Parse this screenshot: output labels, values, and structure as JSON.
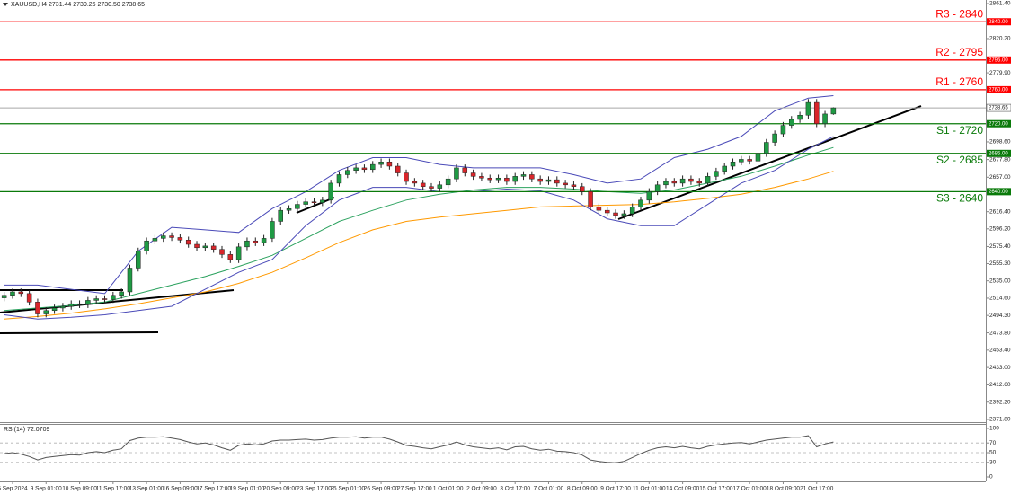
{
  "chart_data": [
    {
      "type": "candlestick",
      "title": "XAUUSD,H4  2731.44 2739.26 2730.50 2738.65",
      "xlim": [
        -0.5,
        117.2
      ],
      "ylim": [
        2371.8,
        2861.4
      ],
      "yticks": [
        {
          "value": 2861.4,
          "label": "2861.40"
        },
        {
          "value": 2820.2,
          "label": "2820.20"
        },
        {
          "value": 2779.9,
          "label": "2779.90"
        },
        {
          "value": 2698.6,
          "label": "2698.60"
        },
        {
          "value": 2677.8,
          "label": "2677.80"
        },
        {
          "value": 2657,
          "label": "2657.00"
        },
        {
          "value": 2616.4,
          "label": "2616.40"
        },
        {
          "value": 2596.2,
          "label": "2596.20"
        },
        {
          "value": 2575.4,
          "label": "2575.40"
        },
        {
          "value": 2555.3,
          "label": "2555.30"
        },
        {
          "value": 2535,
          "label": "2535.00"
        },
        {
          "value": 2514.6,
          "label": "2514.60"
        },
        {
          "value": 2494.3,
          "label": "2494.30"
        },
        {
          "value": 2473.8,
          "label": "2473.80"
        },
        {
          "value": 2453.4,
          "label": "2453.40"
        },
        {
          "value": 2433,
          "label": "2433.00"
        },
        {
          "value": 2412.6,
          "label": "2412.60"
        },
        {
          "value": 2392.2,
          "label": "2392.20"
        },
        {
          "value": 2371.8,
          "label": "2371.80"
        }
      ],
      "up_color": "#1f9a44",
      "down_color": "#d9262b",
      "open": [
        2515,
        2518,
        2522,
        2520,
        2510,
        2496,
        2500,
        2503,
        2505,
        2508,
        2507,
        2512,
        2514,
        2513,
        2518,
        2522,
        2550,
        2570,
        2582,
        2585,
        2588,
        2586,
        2583,
        2578,
        2574,
        2576,
        2572,
        2566,
        2560,
        2575,
        2582,
        2580,
        2585,
        2605,
        2618,
        2620,
        2625,
        2628,
        2627,
        2630,
        2650,
        2660,
        2665,
        2668,
        2666,
        2672,
        2675,
        2670,
        2662,
        2652,
        2650,
        2646,
        2644,
        2648,
        2655,
        2668,
        2662,
        2658,
        2656,
        2654,
        2656,
        2652,
        2658,
        2660,
        2655,
        2652,
        2654,
        2650,
        2648,
        2646,
        2640,
        2622,
        2618,
        2615,
        2612,
        2614,
        2622,
        2630,
        2640,
        2648,
        2652,
        2650,
        2655,
        2652,
        2650,
        2658,
        2664,
        2670,
        2675,
        2678,
        2676,
        2685,
        2698,
        2708,
        2718,
        2725,
        2730,
        2745,
        2720,
        2731.44
      ],
      "high": [
        2522,
        2526,
        2526,
        2524,
        2514,
        2504,
        2507,
        2509,
        2512,
        2512,
        2516,
        2518,
        2518,
        2522,
        2526,
        2554,
        2574,
        2586,
        2589,
        2592,
        2592,
        2590,
        2587,
        2582,
        2580,
        2580,
        2576,
        2570,
        2579,
        2586,
        2586,
        2589,
        2609,
        2622,
        2624,
        2629,
        2632,
        2632,
        2634,
        2654,
        2664,
        2669,
        2672,
        2672,
        2676,
        2679,
        2679,
        2674,
        2666,
        2656,
        2654,
        2650,
        2652,
        2659,
        2672,
        2672,
        2666,
        2662,
        2660,
        2660,
        2660,
        2662,
        2664,
        2664,
        2659,
        2658,
        2658,
        2654,
        2652,
        2650,
        2644,
        2626,
        2622,
        2619,
        2618,
        2626,
        2634,
        2644,
        2652,
        2656,
        2656,
        2659,
        2659,
        2656,
        2662,
        2668,
        2674,
        2679,
        2682,
        2682,
        2689,
        2702,
        2712,
        2722,
        2729,
        2734,
        2749,
        2749,
        2735,
        2739.26
      ],
      "low": [
        2511,
        2514,
        2516,
        2506,
        2492,
        2492,
        2496,
        2499,
        2501,
        2503,
        2503,
        2508,
        2509,
        2509,
        2514,
        2518,
        2546,
        2566,
        2578,
        2581,
        2582,
        2579,
        2574,
        2570,
        2570,
        2568,
        2562,
        2556,
        2556,
        2571,
        2576,
        2576,
        2581,
        2601,
        2614,
        2616,
        2621,
        2623,
        2623,
        2626,
        2646,
        2656,
        2661,
        2662,
        2662,
        2668,
        2666,
        2658,
        2648,
        2646,
        2642,
        2640,
        2640,
        2644,
        2651,
        2658,
        2654,
        2652,
        2650,
        2650,
        2648,
        2648,
        2654,
        2651,
        2648,
        2648,
        2646,
        2644,
        2642,
        2636,
        2618,
        2614,
        2611,
        2608,
        2608,
        2610,
        2618,
        2626,
        2636,
        2644,
        2646,
        2646,
        2648,
        2646,
        2646,
        2654,
        2660,
        2666,
        2671,
        2672,
        2672,
        2681,
        2694,
        2704,
        2714,
        2721,
        2726,
        2716,
        2716,
        2730.5
      ],
      "close": [
        2518,
        2522,
        2520,
        2510,
        2496,
        2500,
        2503,
        2505,
        2508,
        2507,
        2512,
        2514,
        2513,
        2518,
        2522,
        2550,
        2570,
        2582,
        2585,
        2588,
        2586,
        2583,
        2578,
        2574,
        2576,
        2572,
        2566,
        2560,
        2575,
        2582,
        2580,
        2585,
        2605,
        2618,
        2620,
        2625,
        2628,
        2627,
        2630,
        2650,
        2660,
        2665,
        2668,
        2666,
        2672,
        2675,
        2670,
        2662,
        2652,
        2650,
        2646,
        2644,
        2648,
        2655,
        2668,
        2662,
        2658,
        2656,
        2654,
        2656,
        2652,
        2658,
        2660,
        2655,
        2652,
        2654,
        2650,
        2648,
        2646,
        2640,
        2622,
        2618,
        2615,
        2612,
        2614,
        2622,
        2630,
        2640,
        2648,
        2652,
        2650,
        2655,
        2652,
        2650,
        2658,
        2664,
        2670,
        2675,
        2678,
        2676,
        2685,
        2698,
        2708,
        2718,
        2725,
        2730,
        2745,
        2720,
        2731.44,
        2738.65
      ],
      "overlays": [
        {
          "color": "#ff9900",
          "x": [
            0,
            4,
            8,
            12,
            16,
            20,
            24,
            28,
            32,
            36,
            40,
            44,
            48,
            52,
            56,
            60,
            64,
            68,
            72,
            76,
            80,
            84,
            88,
            92,
            96,
            99
          ],
          "values": [
            2490,
            2493,
            2497,
            2502,
            2508,
            2515,
            2522,
            2532,
            2545,
            2562,
            2580,
            2595,
            2605,
            2610,
            2614,
            2618,
            2622,
            2623,
            2624,
            2625,
            2628,
            2632,
            2637,
            2645,
            2655,
            2664
          ]
        },
        {
          "color": "#2ca25f",
          "x": [
            0,
            4,
            8,
            12,
            16,
            20,
            24,
            28,
            32,
            36,
            40,
            44,
            48,
            52,
            56,
            60,
            64,
            68,
            72,
            76,
            80,
            84,
            88,
            92,
            96,
            99
          ],
          "values": [
            2500,
            2503,
            2506,
            2510,
            2520,
            2530,
            2540,
            2552,
            2565,
            2585,
            2605,
            2618,
            2630,
            2637,
            2642,
            2645,
            2645,
            2643,
            2640,
            2638,
            2642,
            2650,
            2658,
            2670,
            2683,
            2692
          ]
        },
        {
          "color": "#4a4ab8",
          "x": [
            0,
            4,
            8,
            12,
            16,
            20,
            24,
            28,
            32,
            36,
            40,
            44,
            48,
            52,
            56,
            60,
            64,
            68,
            72,
            76,
            80,
            84,
            88,
            92,
            96,
            99
          ],
          "values": [
            2530,
            2530,
            2525,
            2520,
            2570,
            2598,
            2595,
            2592,
            2620,
            2640,
            2665,
            2680,
            2680,
            2672,
            2668,
            2668,
            2668,
            2660,
            2650,
            2655,
            2680,
            2690,
            2705,
            2735,
            2750,
            2753
          ]
        },
        {
          "color": "#4a4ab8",
          "x": [
            0,
            4,
            8,
            12,
            16,
            20,
            24,
            28,
            32,
            36,
            40,
            44,
            48,
            52,
            56,
            60,
            64,
            68,
            72,
            76,
            80,
            84,
            88,
            92,
            96,
            99
          ],
          "values": [
            2495,
            2490,
            2492,
            2495,
            2500,
            2505,
            2525,
            2545,
            2560,
            2600,
            2630,
            2645,
            2645,
            2640,
            2640,
            2643,
            2641,
            2630,
            2608,
            2600,
            2600,
            2625,
            2650,
            2665,
            2690,
            2705
          ]
        }
      ],
      "levels": [
        {
          "label": "R3 - 2840",
          "value": 2840,
          "tag": "2840.00",
          "color": "#ff0000"
        },
        {
          "label": "R2 - 2795",
          "value": 2795,
          "tag": "2795.00",
          "color": "#ff0000"
        },
        {
          "label": "R1 - 2760",
          "value": 2760,
          "tag": "2760.00",
          "color": "#ff0000"
        },
        {
          "label": "S1 - 2720",
          "value": 2720,
          "tag": "2720.00",
          "color": "#0a7a0a"
        },
        {
          "label": "S2 - 2685",
          "value": 2685,
          "tag": "2685.00",
          "color": "#0a7a0a"
        },
        {
          "label": "S3 - 2640",
          "value": 2640,
          "tag": "2640.00",
          "color": "#0a7a0a"
        }
      ],
      "last": {
        "value": 2738.65,
        "label": "2738.65"
      }
    },
    {
      "type": "line",
      "title": "RSI(14) 72.0709",
      "color": "#555555",
      "xlim": [
        -0.5,
        117.2
      ],
      "ylim": [
        0,
        100
      ],
      "yticks": [
        100,
        70,
        50,
        30,
        0
      ],
      "grid": true,
      "values": [
        48,
        50,
        47,
        42,
        35,
        40,
        42,
        44,
        46,
        45,
        50,
        52,
        50,
        55,
        58,
        75,
        80,
        82,
        82,
        83,
        80,
        77,
        72,
        68,
        70,
        66,
        60,
        55,
        65,
        68,
        66,
        68,
        74,
        76,
        76,
        77,
        78,
        76,
        77,
        80,
        82,
        82,
        83,
        80,
        82,
        82,
        78,
        72,
        65,
        63,
        60,
        58,
        62,
        66,
        72,
        66,
        62,
        60,
        58,
        60,
        56,
        62,
        63,
        58,
        55,
        57,
        53,
        52,
        50,
        45,
        35,
        32,
        30,
        29,
        32,
        40,
        48,
        55,
        60,
        62,
        60,
        63,
        60,
        58,
        63,
        66,
        68,
        70,
        71,
        68,
        72,
        76,
        78,
        80,
        82,
        82,
        85,
        62,
        68,
        72.0709
      ],
      "xticks": [
        {
          "value": 1,
          "label": "5 Sep 2024"
        },
        {
          "value": 5,
          "label": "9 Sep 01:00"
        },
        {
          "value": 9,
          "label": "10 Sep 09:00"
        },
        {
          "value": 13,
          "label": "11 Sep 17:00"
        },
        {
          "value": 17,
          "label": "13 Sep 01:00"
        },
        {
          "value": 21,
          "label": "16 Sep 09:00"
        },
        {
          "value": 25,
          "label": "17 Sep 17:00"
        },
        {
          "value": 29,
          "label": "19 Sep 01:00"
        },
        {
          "value": 33,
          "label": "20 Sep 09:00"
        },
        {
          "value": 37,
          "label": "23 Sep 17:00"
        },
        {
          "value": 41,
          "label": "25 Sep 01:00"
        },
        {
          "value": 45,
          "label": "26 Sep 09:00"
        },
        {
          "value": 49,
          "label": "27 Sep 17:00"
        },
        {
          "value": 53,
          "label": "1 Oct 01:00"
        },
        {
          "value": 57,
          "label": "2 Oct 09:00"
        },
        {
          "value": 61,
          "label": "3 Oct 17:00"
        },
        {
          "value": 65,
          "label": "7 Oct 01:00"
        },
        {
          "value": 69,
          "label": "8 Oct 09:00"
        },
        {
          "value": 73,
          "label": "9 Oct 17:00"
        },
        {
          "value": 77,
          "label": "11 Oct 01:00"
        },
        {
          "value": 81,
          "label": "14 Oct 09:00"
        },
        {
          "value": 85,
          "label": "15 Oct 17:00"
        },
        {
          "value": 89,
          "label": "17 Oct 01:00"
        },
        {
          "value": 93,
          "label": "18 Oct 09:00"
        },
        {
          "value": 97,
          "label": "21 Oct 17:00"
        }
      ]
    }
  ]
}
